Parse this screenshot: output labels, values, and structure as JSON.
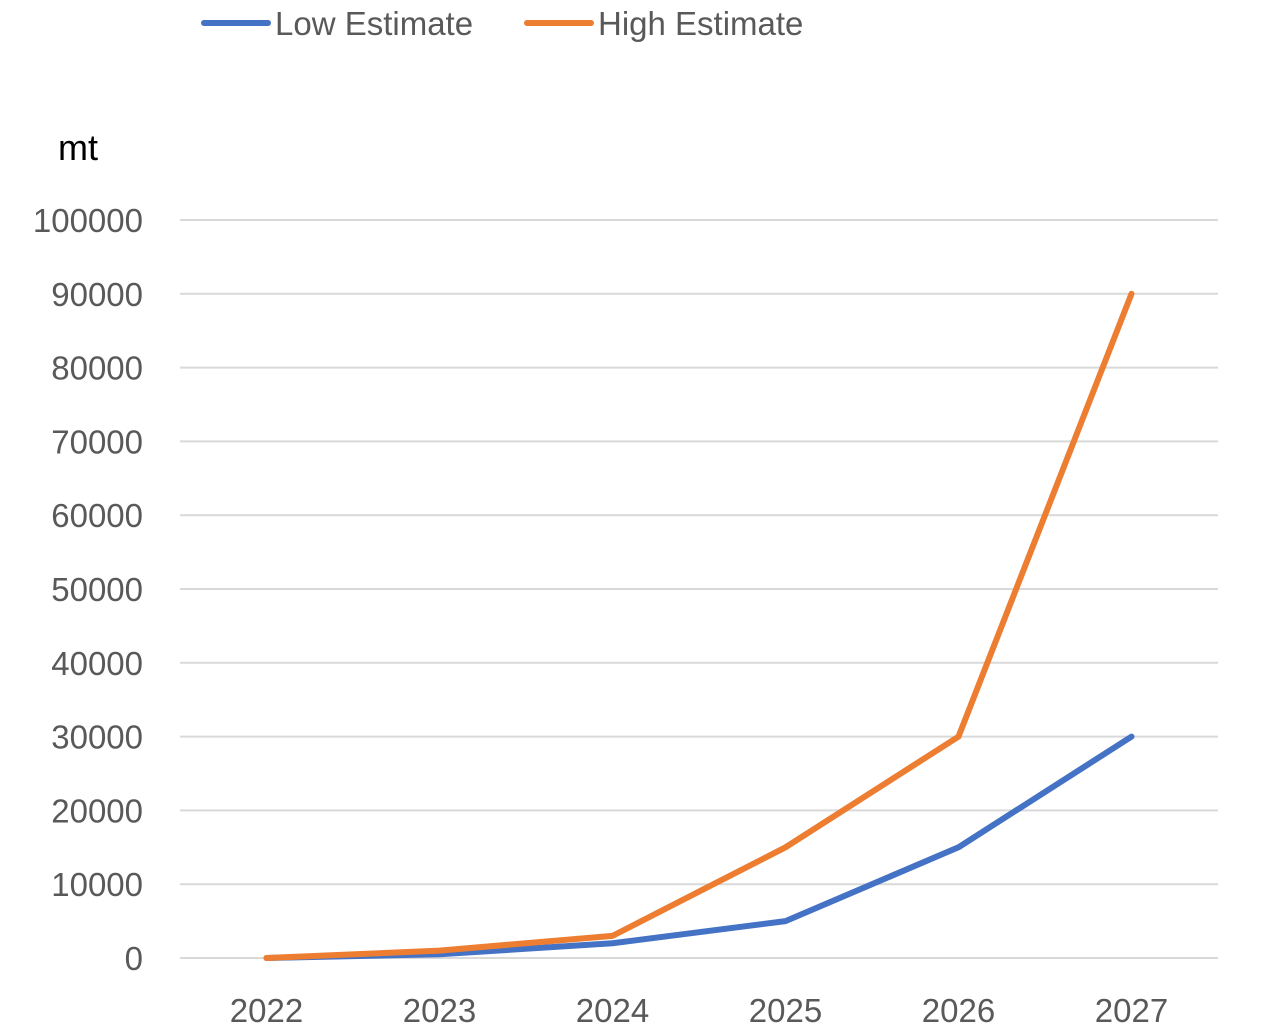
{
  "chart_data": {
    "type": "line",
    "title": "",
    "xlabel": "",
    "ylabel": "mt",
    "categories": [
      "2022",
      "2023",
      "2024",
      "2025",
      "2026",
      "2027"
    ],
    "series": [
      {
        "name": "Low Estimate",
        "values": [
          0,
          500,
          2000,
          5000,
          15000,
          30000
        ],
        "color": "#4472C4"
      },
      {
        "name": "High Estimate",
        "values": [
          0,
          1000,
          3000,
          15000,
          30000,
          90000
        ],
        "color": "#ED7D31"
      }
    ],
    "ylim": [
      0,
      100000
    ],
    "yticks": [
      "0",
      "10000",
      "20000",
      "30000",
      "40000",
      "50000",
      "60000",
      "70000",
      "80000",
      "90000",
      "100000"
    ],
    "grid": true,
    "gridColor": "#D9D9D9",
    "legend": "top-left"
  }
}
